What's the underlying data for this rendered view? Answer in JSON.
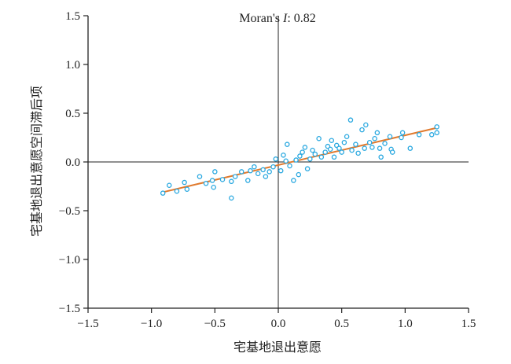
{
  "chart_data": {
    "type": "scatter",
    "title": "",
    "annotation": {
      "label": "Moran's ",
      "stat": "I",
      "sep": ": ",
      "value": "0.82"
    },
    "xlabel": "宅基地退出意愿",
    "ylabel": "宅基地退出意愿空间滞后项",
    "xlim": [
      -1.5,
      1.5
    ],
    "ylim": [
      -1.5,
      1.5
    ],
    "xticks": [
      -1.5,
      -1.0,
      -0.5,
      0.0,
      0.5,
      1.0,
      1.5
    ],
    "yticks": [
      -1.5,
      -1.0,
      -0.5,
      0.0,
      0.5,
      1.0,
      1.5
    ],
    "xtick_labels": [
      "−1.5",
      "−1.0",
      "−0.5",
      "0.0",
      "0.5",
      "1.0",
      "1.5"
    ],
    "ytick_labels": [
      "−1.5",
      "−1.0",
      "−0.5",
      "0.0",
      "0.5",
      "1.0",
      "1.5"
    ],
    "grid": false,
    "colors": {
      "points": "#29a8e0",
      "fit_line": "#e07a2e",
      "axes": "#222222"
    },
    "fit_line": {
      "x": [
        -0.91,
        1.25
      ],
      "y": [
        -0.31,
        0.35
      ]
    },
    "points": [
      {
        "x": -0.91,
        "y": -0.32
      },
      {
        "x": -0.86,
        "y": -0.24
      },
      {
        "x": -0.8,
        "y": -0.3
      },
      {
        "x": -0.74,
        "y": -0.21
      },
      {
        "x": -0.72,
        "y": -0.28
      },
      {
        "x": -0.62,
        "y": -0.15
      },
      {
        "x": -0.57,
        "y": -0.22
      },
      {
        "x": -0.52,
        "y": -0.19
      },
      {
        "x": -0.51,
        "y": -0.26
      },
      {
        "x": -0.5,
        "y": -0.1
      },
      {
        "x": -0.44,
        "y": -0.18
      },
      {
        "x": -0.37,
        "y": -0.2
      },
      {
        "x": -0.37,
        "y": -0.37
      },
      {
        "x": -0.34,
        "y": -0.15
      },
      {
        "x": -0.29,
        "y": -0.1
      },
      {
        "x": -0.24,
        "y": -0.19
      },
      {
        "x": -0.22,
        "y": -0.09
      },
      {
        "x": -0.19,
        "y": -0.05
      },
      {
        "x": -0.16,
        "y": -0.12
      },
      {
        "x": -0.12,
        "y": -0.08
      },
      {
        "x": -0.1,
        "y": -0.15
      },
      {
        "x": -0.07,
        "y": -0.1
      },
      {
        "x": -0.04,
        "y": -0.05
      },
      {
        "x": -0.02,
        "y": 0.03
      },
      {
        "x": 0.02,
        "y": -0.09
      },
      {
        "x": 0.04,
        "y": 0.07
      },
      {
        "x": 0.06,
        "y": 0.01
      },
      {
        "x": 0.07,
        "y": 0.18
      },
      {
        "x": 0.09,
        "y": -0.04
      },
      {
        "x": 0.12,
        "y": -0.19
      },
      {
        "x": 0.14,
        "y": 0.02
      },
      {
        "x": 0.16,
        "y": -0.13
      },
      {
        "x": 0.17,
        "y": 0.06
      },
      {
        "x": 0.19,
        "y": 0.1
      },
      {
        "x": 0.21,
        "y": 0.15
      },
      {
        "x": 0.23,
        "y": -0.07
      },
      {
        "x": 0.25,
        "y": 0.03
      },
      {
        "x": 0.27,
        "y": 0.12
      },
      {
        "x": 0.29,
        "y": 0.08
      },
      {
        "x": 0.32,
        "y": 0.24
      },
      {
        "x": 0.34,
        "y": 0.05
      },
      {
        "x": 0.37,
        "y": 0.1
      },
      {
        "x": 0.39,
        "y": 0.16
      },
      {
        "x": 0.41,
        "y": 0.13
      },
      {
        "x": 0.42,
        "y": 0.22
      },
      {
        "x": 0.44,
        "y": 0.05
      },
      {
        "x": 0.46,
        "y": 0.17
      },
      {
        "x": 0.48,
        "y": 0.14
      },
      {
        "x": 0.5,
        "y": 0.1
      },
      {
        "x": 0.52,
        "y": 0.2
      },
      {
        "x": 0.54,
        "y": 0.26
      },
      {
        "x": 0.57,
        "y": 0.43
      },
      {
        "x": 0.58,
        "y": 0.12
      },
      {
        "x": 0.61,
        "y": 0.18
      },
      {
        "x": 0.63,
        "y": 0.09
      },
      {
        "x": 0.66,
        "y": 0.33
      },
      {
        "x": 0.68,
        "y": 0.14
      },
      {
        "x": 0.69,
        "y": 0.38
      },
      {
        "x": 0.72,
        "y": 0.2
      },
      {
        "x": 0.74,
        "y": 0.15
      },
      {
        "x": 0.76,
        "y": 0.24
      },
      {
        "x": 0.78,
        "y": 0.3
      },
      {
        "x": 0.8,
        "y": 0.14
      },
      {
        "x": 0.81,
        "y": 0.05
      },
      {
        "x": 0.84,
        "y": 0.19
      },
      {
        "x": 0.88,
        "y": 0.26
      },
      {
        "x": 0.89,
        "y": 0.13
      },
      {
        "x": 0.9,
        "y": 0.1
      },
      {
        "x": 0.97,
        "y": 0.25
      },
      {
        "x": 0.98,
        "y": 0.3
      },
      {
        "x": 1.04,
        "y": 0.14
      },
      {
        "x": 1.11,
        "y": 0.28
      },
      {
        "x": 1.21,
        "y": 0.28
      },
      {
        "x": 1.25,
        "y": 0.3
      },
      {
        "x": 1.25,
        "y": 0.36
      }
    ]
  }
}
